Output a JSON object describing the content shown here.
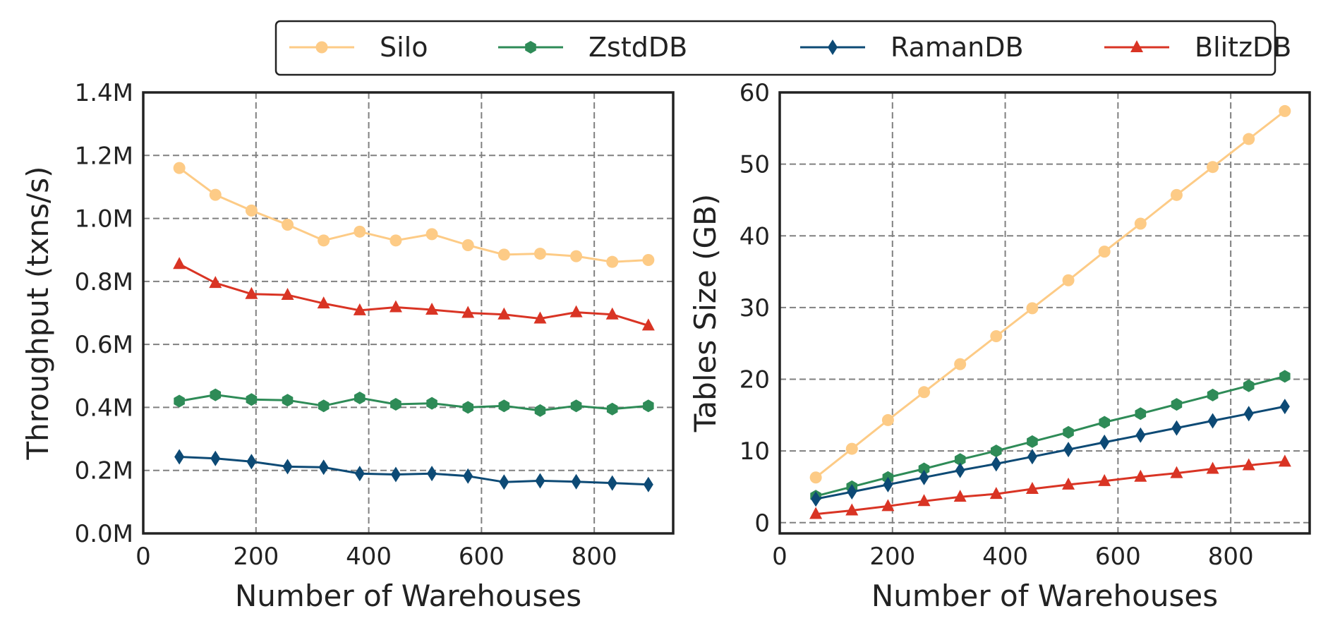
{
  "legend": {
    "position": "top-right",
    "entries": [
      {
        "name": "Silo",
        "color": "#fdcb86",
        "marker": "circle"
      },
      {
        "name": "ZstdDB",
        "color": "#2e8b57",
        "marker": "hexagon"
      },
      {
        "name": "RamanDB",
        "color": "#0d4a75",
        "marker": "diamond"
      },
      {
        "name": "BlitzDB",
        "color": "#d93424",
        "marker": "triangle"
      }
    ]
  },
  "chart_data": [
    {
      "type": "line",
      "title": "",
      "xlabel": "Number of Warehouses",
      "ylabel": "Throughput (txns/s)",
      "xlim": [
        0,
        940
      ],
      "ylim": [
        0,
        1400000
      ],
      "xticks": [
        0,
        200,
        400,
        600,
        800
      ],
      "xtick_labels": [
        "0",
        "200",
        "400",
        "600",
        "800"
      ],
      "yticks": [
        0,
        200000,
        400000,
        600000,
        800000,
        1000000,
        1200000,
        1400000
      ],
      "ytick_labels": [
        "0.0M",
        "0.2M",
        "0.4M",
        "0.6M",
        "0.8M",
        "1.0M",
        "1.2M",
        "1.4M"
      ],
      "grid": true,
      "x": [
        64,
        128,
        192,
        256,
        320,
        384,
        448,
        512,
        576,
        640,
        704,
        768,
        832,
        896
      ],
      "series": [
        {
          "name": "Silo",
          "values": [
            1160000,
            1075000,
            1025000,
            980000,
            930000,
            958000,
            930000,
            950000,
            915000,
            885000,
            888000,
            880000,
            862000,
            868000
          ]
        },
        {
          "name": "ZstdDB",
          "values": [
            420000,
            440000,
            425000,
            423000,
            405000,
            430000,
            410000,
            413000,
            400000,
            405000,
            390000,
            405000,
            395000,
            405000
          ]
        },
        {
          "name": "RamanDB",
          "values": [
            243000,
            238000,
            228000,
            212000,
            210000,
            190000,
            187000,
            190000,
            182000,
            163000,
            167000,
            164000,
            160000,
            155000
          ]
        },
        {
          "name": "BlitzDB",
          "values": [
            855000,
            795000,
            760000,
            757000,
            730000,
            708000,
            718000,
            710000,
            700000,
            695000,
            682000,
            702000,
            695000,
            660000
          ]
        }
      ]
    },
    {
      "type": "line",
      "title": "",
      "xlabel": "Number of Warehouses",
      "ylabel": "Tables Size (GB)",
      "xlim": [
        0,
        940
      ],
      "ylim": [
        -1.5,
        60
      ],
      "xticks": [
        0,
        200,
        400,
        600,
        800
      ],
      "xtick_labels": [
        "0",
        "200",
        "400",
        "600",
        "800"
      ],
      "yticks": [
        0,
        10,
        20,
        30,
        40,
        50,
        60
      ],
      "ytick_labels": [
        "0",
        "10",
        "20",
        "30",
        "40",
        "50",
        "60"
      ],
      "grid": true,
      "x": [
        64,
        128,
        192,
        256,
        320,
        384,
        448,
        512,
        576,
        640,
        704,
        768,
        832,
        896
      ],
      "series": [
        {
          "name": "Silo",
          "values": [
            6.3,
            10.3,
            14.3,
            18.2,
            22.1,
            26.0,
            29.9,
            33.8,
            37.8,
            41.7,
            45.7,
            49.6,
            53.5,
            57.4
          ]
        },
        {
          "name": "ZstdDB",
          "values": [
            3.7,
            5.0,
            6.3,
            7.5,
            8.8,
            10.0,
            11.3,
            12.6,
            14.0,
            15.2,
            16.5,
            17.8,
            19.1,
            20.4
          ]
        },
        {
          "name": "RamanDB",
          "values": [
            3.3,
            4.3,
            5.3,
            6.3,
            7.3,
            8.2,
            9.2,
            10.2,
            11.2,
            12.2,
            13.2,
            14.2,
            15.2,
            16.2
          ]
        },
        {
          "name": "BlitzDB",
          "values": [
            1.2,
            1.7,
            2.3,
            3.0,
            3.6,
            4.0,
            4.7,
            5.3,
            5.8,
            6.4,
            6.9,
            7.5,
            8.0,
            8.5
          ]
        }
      ]
    }
  ]
}
